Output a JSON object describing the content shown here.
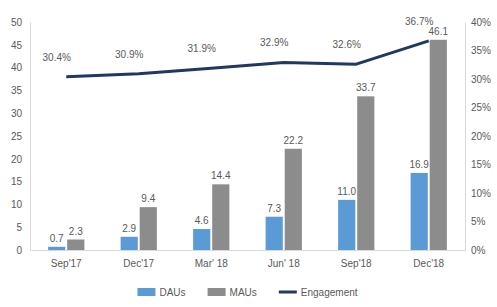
{
  "chart_data": {
    "type": "bar",
    "categories": [
      "Sep'17",
      "Dec'17",
      "Mar' 18",
      "Jun' 18",
      "Sep'18",
      "Dec'18"
    ],
    "series": [
      {
        "name": "DAUs",
        "type": "bar",
        "color": "#5b9bd5",
        "values": [
          0.7,
          2.9,
          4.6,
          7.3,
          11.0,
          16.9
        ],
        "value_labels": [
          "0.7",
          "2.9",
          "4.6",
          "7.3",
          "11.0",
          "16.9"
        ]
      },
      {
        "name": "MAUs",
        "type": "bar",
        "color": "#8c8c8c",
        "values": [
          2.3,
          9.4,
          14.4,
          22.2,
          33.7,
          46.1
        ]
      },
      {
        "name": "Engagement",
        "type": "line",
        "axis": "y2",
        "color": "#203864",
        "values": [
          30.4,
          30.9,
          31.9,
          32.9,
          32.6,
          36.7
        ],
        "value_labels": [
          "30.4%",
          "30.9%",
          "31.9%",
          "32.9%",
          "32.6%",
          "36.7%"
        ]
      }
    ],
    "ylim": [
      0,
      50
    ],
    "yticks": [
      0,
      5,
      10,
      15,
      20,
      25,
      30,
      35,
      40,
      45,
      50
    ],
    "y2lim": [
      0,
      40
    ],
    "y2ticks": [
      {
        "value": 0,
        "label": "0%"
      },
      {
        "value": 5,
        "label": "5%"
      },
      {
        "value": 10,
        "label": "10%"
      },
      {
        "value": 15,
        "label": "15%"
      },
      {
        "value": 20,
        "label": "20%"
      },
      {
        "value": 25,
        "label": "25%"
      },
      {
        "value": 30,
        "label": "30%"
      },
      {
        "value": 35,
        "label": "35%"
      },
      {
        "value": 40,
        "label": "40%"
      }
    ],
    "data_labels": true,
    "legend": "bottom",
    "grid": false
  }
}
